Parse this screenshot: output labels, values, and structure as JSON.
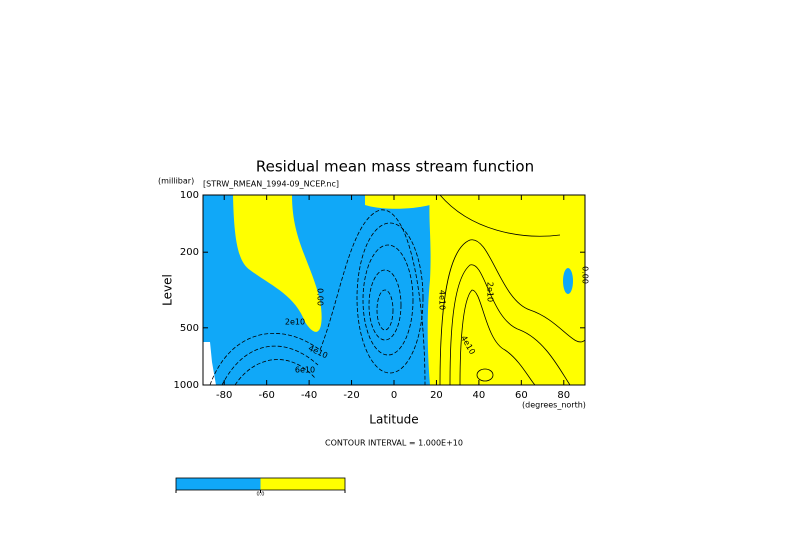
{
  "chart_data": {
    "type": "contour",
    "title": "Residual mean mass stream function",
    "subtitle": "[STRW_RMEAN_1994-09_NCEP.nc]",
    "x_label": "Latitude",
    "x_unit": "(degrees_north)",
    "y_label": "Level",
    "y_unit": "(millibar)",
    "xlim": [
      -90,
      90
    ],
    "xticks": [
      -80,
      -60,
      -40,
      -20,
      0,
      20,
      40,
      60,
      80
    ],
    "ylim": [
      1000,
      100
    ],
    "yticks": [
      100,
      200,
      500,
      1000
    ],
    "y_log": true,
    "contour_interval": "CONTOUR INTERVAL = 1.000E+10",
    "contour_labels": [
      "0.00",
      "2e10",
      "4e10",
      "6e10",
      "4e10",
      "2e10",
      "4e10",
      "0.00"
    ],
    "colorbar": {
      "colors": [
        "#10a8f8",
        "#ffff00"
      ],
      "labels": [
        "0.0"
      ]
    }
  }
}
